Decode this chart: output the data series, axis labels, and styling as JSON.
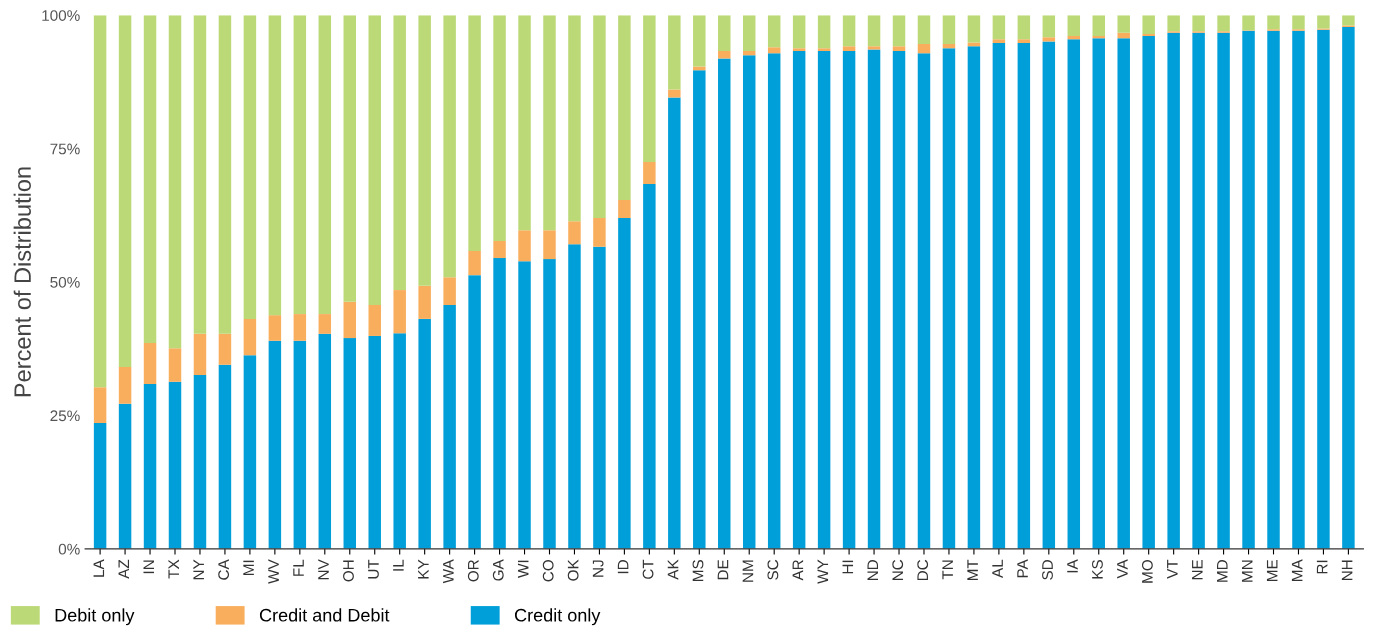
{
  "chart_data": {
    "type": "bar",
    "stacked": true,
    "ylabel": "Percent of Distribution",
    "categories": [
      "LA",
      "AZ",
      "IN",
      "TX",
      "NY",
      "CA",
      "MI",
      "WV",
      "FL",
      "NV",
      "OH",
      "UT",
      "IL",
      "KY",
      "WA",
      "OR",
      "GA",
      "WI",
      "CO",
      "OK",
      "NJ",
      "ID",
      "CT",
      "AK",
      "MS",
      "DE",
      "NM",
      "SC",
      "AR",
      "WY",
      "HI",
      "ND",
      "NC",
      "DC",
      "TN",
      "MT",
      "AL",
      "PA",
      "SD",
      "IA",
      "KS",
      "VA",
      "MO",
      "VT",
      "NE",
      "MD",
      "MN",
      "ME",
      "MA",
      "RI",
      "NH"
    ],
    "series": [
      {
        "name": "Credit only",
        "color": "#009fda",
        "values": [
          23.6,
          27.2,
          30.9,
          31.3,
          32.6,
          34.5,
          36.3,
          39.0,
          39.0,
          40.3,
          39.5,
          39.9,
          40.4,
          43.1,
          45.7,
          51.3,
          54.5,
          53.9,
          54.3,
          57.1,
          56.6,
          62.0,
          68.4,
          84.6,
          89.7,
          91.9,
          92.5,
          92.9,
          93.3,
          93.3,
          93.3,
          93.6,
          93.3,
          92.9,
          93.8,
          94.2,
          94.8,
          94.8,
          95.1,
          95.5,
          95.7,
          95.7,
          96.1,
          96.7,
          96.7,
          96.7,
          97.1,
          97.1,
          97.1,
          97.3,
          97.8
        ]
      },
      {
        "name": "Credit and Debit",
        "color": "#f9ae5e",
        "values": [
          6.7,
          6.9,
          7.7,
          6.3,
          7.7,
          5.8,
          6.8,
          4.8,
          5.0,
          3.7,
          6.8,
          5.8,
          8.1,
          6.2,
          5.2,
          4.5,
          3.2,
          5.8,
          5.4,
          4.3,
          5.4,
          3.4,
          4.1,
          1.5,
          0.7,
          1.4,
          0.8,
          1.1,
          0.5,
          0.5,
          0.9,
          0.6,
          0.9,
          1.7,
          0.8,
          0.7,
          0.7,
          0.7,
          0.8,
          0.6,
          0.4,
          1.0,
          0.4,
          0.3,
          0.3,
          0.3,
          0.1,
          0.3,
          0.3,
          0.2,
          0.3
        ]
      },
      {
        "name": "Debit only",
        "color": "#bcd977",
        "values": [
          69.7,
          65.9,
          61.4,
          62.4,
          59.7,
          59.7,
          56.9,
          56.2,
          56.0,
          56.0,
          53.7,
          54.3,
          51.5,
          50.7,
          49.1,
          44.2,
          42.3,
          40.3,
          40.3,
          38.6,
          38.0,
          34.6,
          27.5,
          13.9,
          9.6,
          6.7,
          6.7,
          6.0,
          6.2,
          6.2,
          5.8,
          5.8,
          5.8,
          5.4,
          5.4,
          5.1,
          4.5,
          4.5,
          4.1,
          3.9,
          3.9,
          3.3,
          3.5,
          3.0,
          3.0,
          3.0,
          2.8,
          2.6,
          2.6,
          2.5,
          1.9
        ]
      }
    ],
    "ylim": [
      0,
      100
    ],
    "yticks": [
      {
        "value": 0,
        "label": "0%"
      },
      {
        "value": 25,
        "label": "25%"
      },
      {
        "value": 50,
        "label": "50%"
      },
      {
        "value": 75,
        "label": "75%"
      },
      {
        "value": 100,
        "label": "100%"
      }
    ],
    "legend": "bottom left",
    "grid": false
  }
}
